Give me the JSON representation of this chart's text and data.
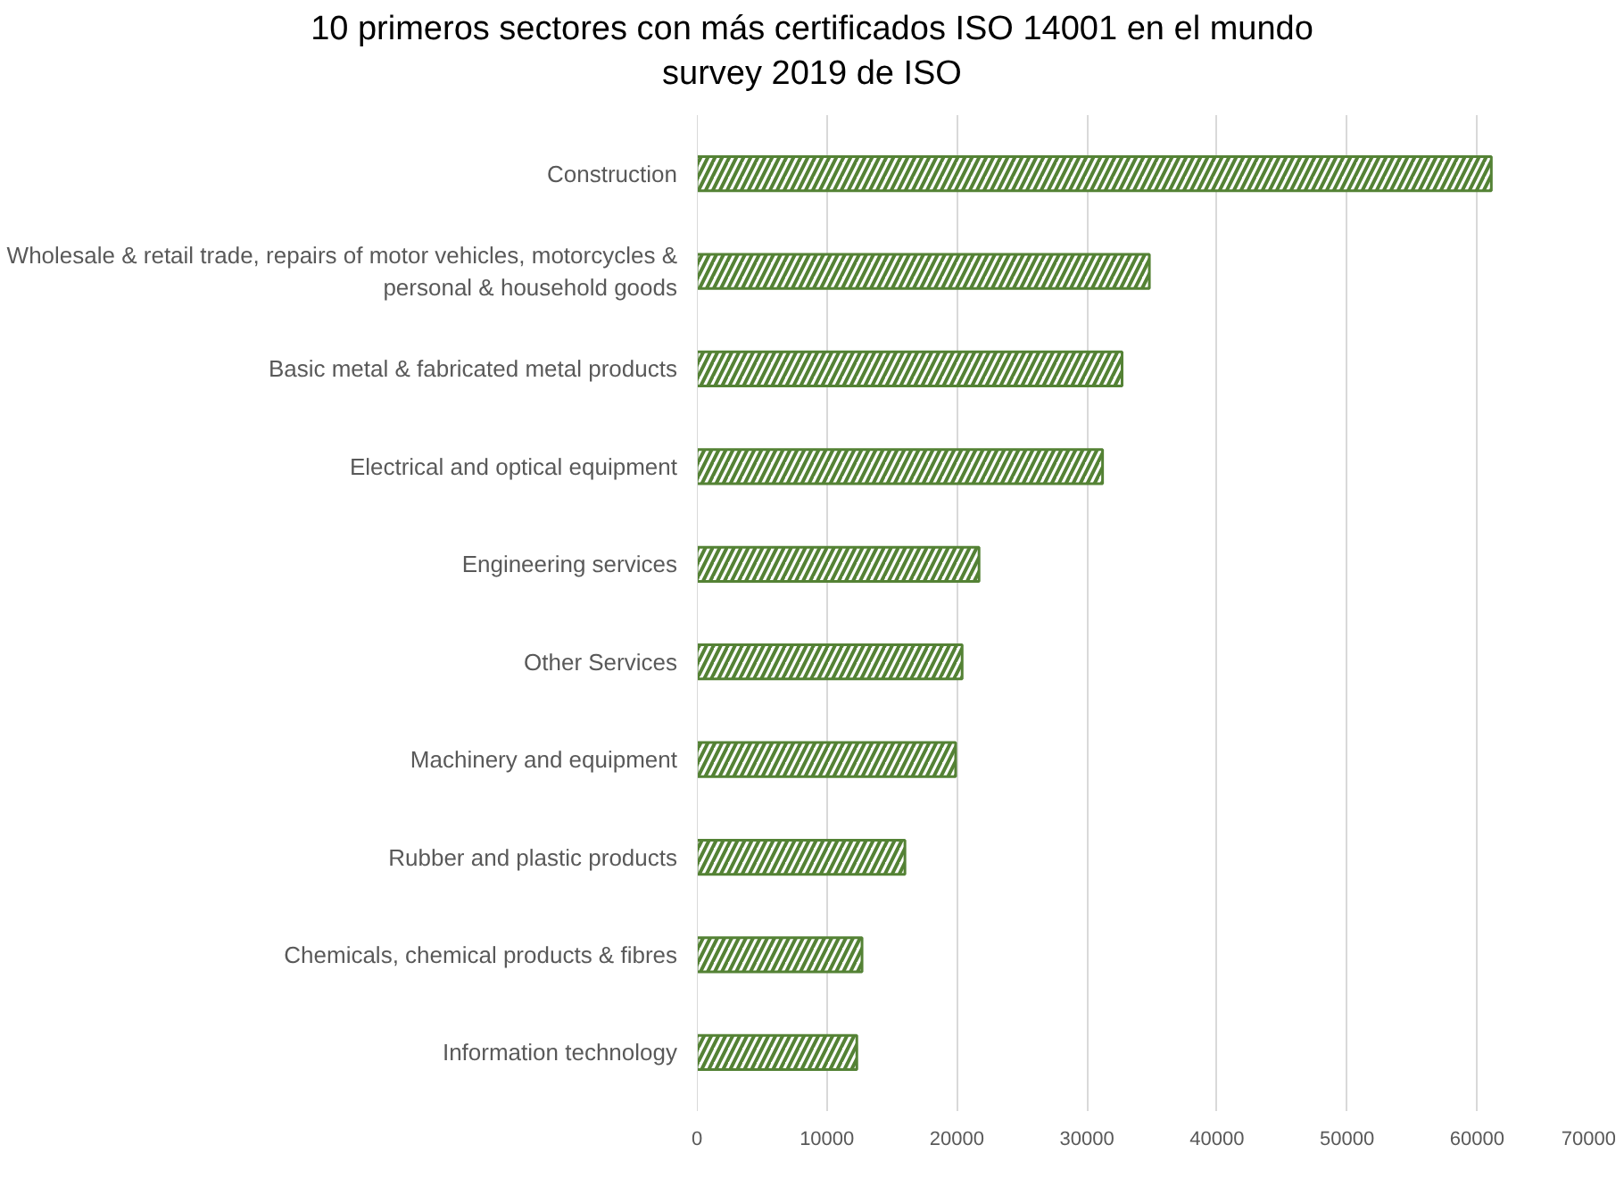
{
  "chart_data": {
    "type": "bar",
    "orientation": "horizontal",
    "title": "10 primeros sectores con más certificados ISO 14001 en el mundo",
    "subtitle": "survey 2019 de ISO",
    "categories": [
      "Construction",
      "Wholesale & retail trade, repairs of motor vehicles, motorcycles & personal & household goods",
      "Basic metal & fabricated metal products",
      "Electrical and optical equipment",
      "Engineering services",
      "Other Services",
      "Machinery and equipment",
      "Rubber and plastic products",
      "Chemicals, chemical products & fibres",
      "Information technology"
    ],
    "values": [
      61100,
      34800,
      32700,
      31200,
      21700,
      20400,
      19900,
      16000,
      12700,
      12300
    ],
    "color": "#548235",
    "xlim": [
      0,
      70000
    ],
    "xticks": [
      0,
      10000,
      20000,
      30000,
      40000,
      50000,
      60000,
      70000
    ],
    "grid": "x"
  }
}
